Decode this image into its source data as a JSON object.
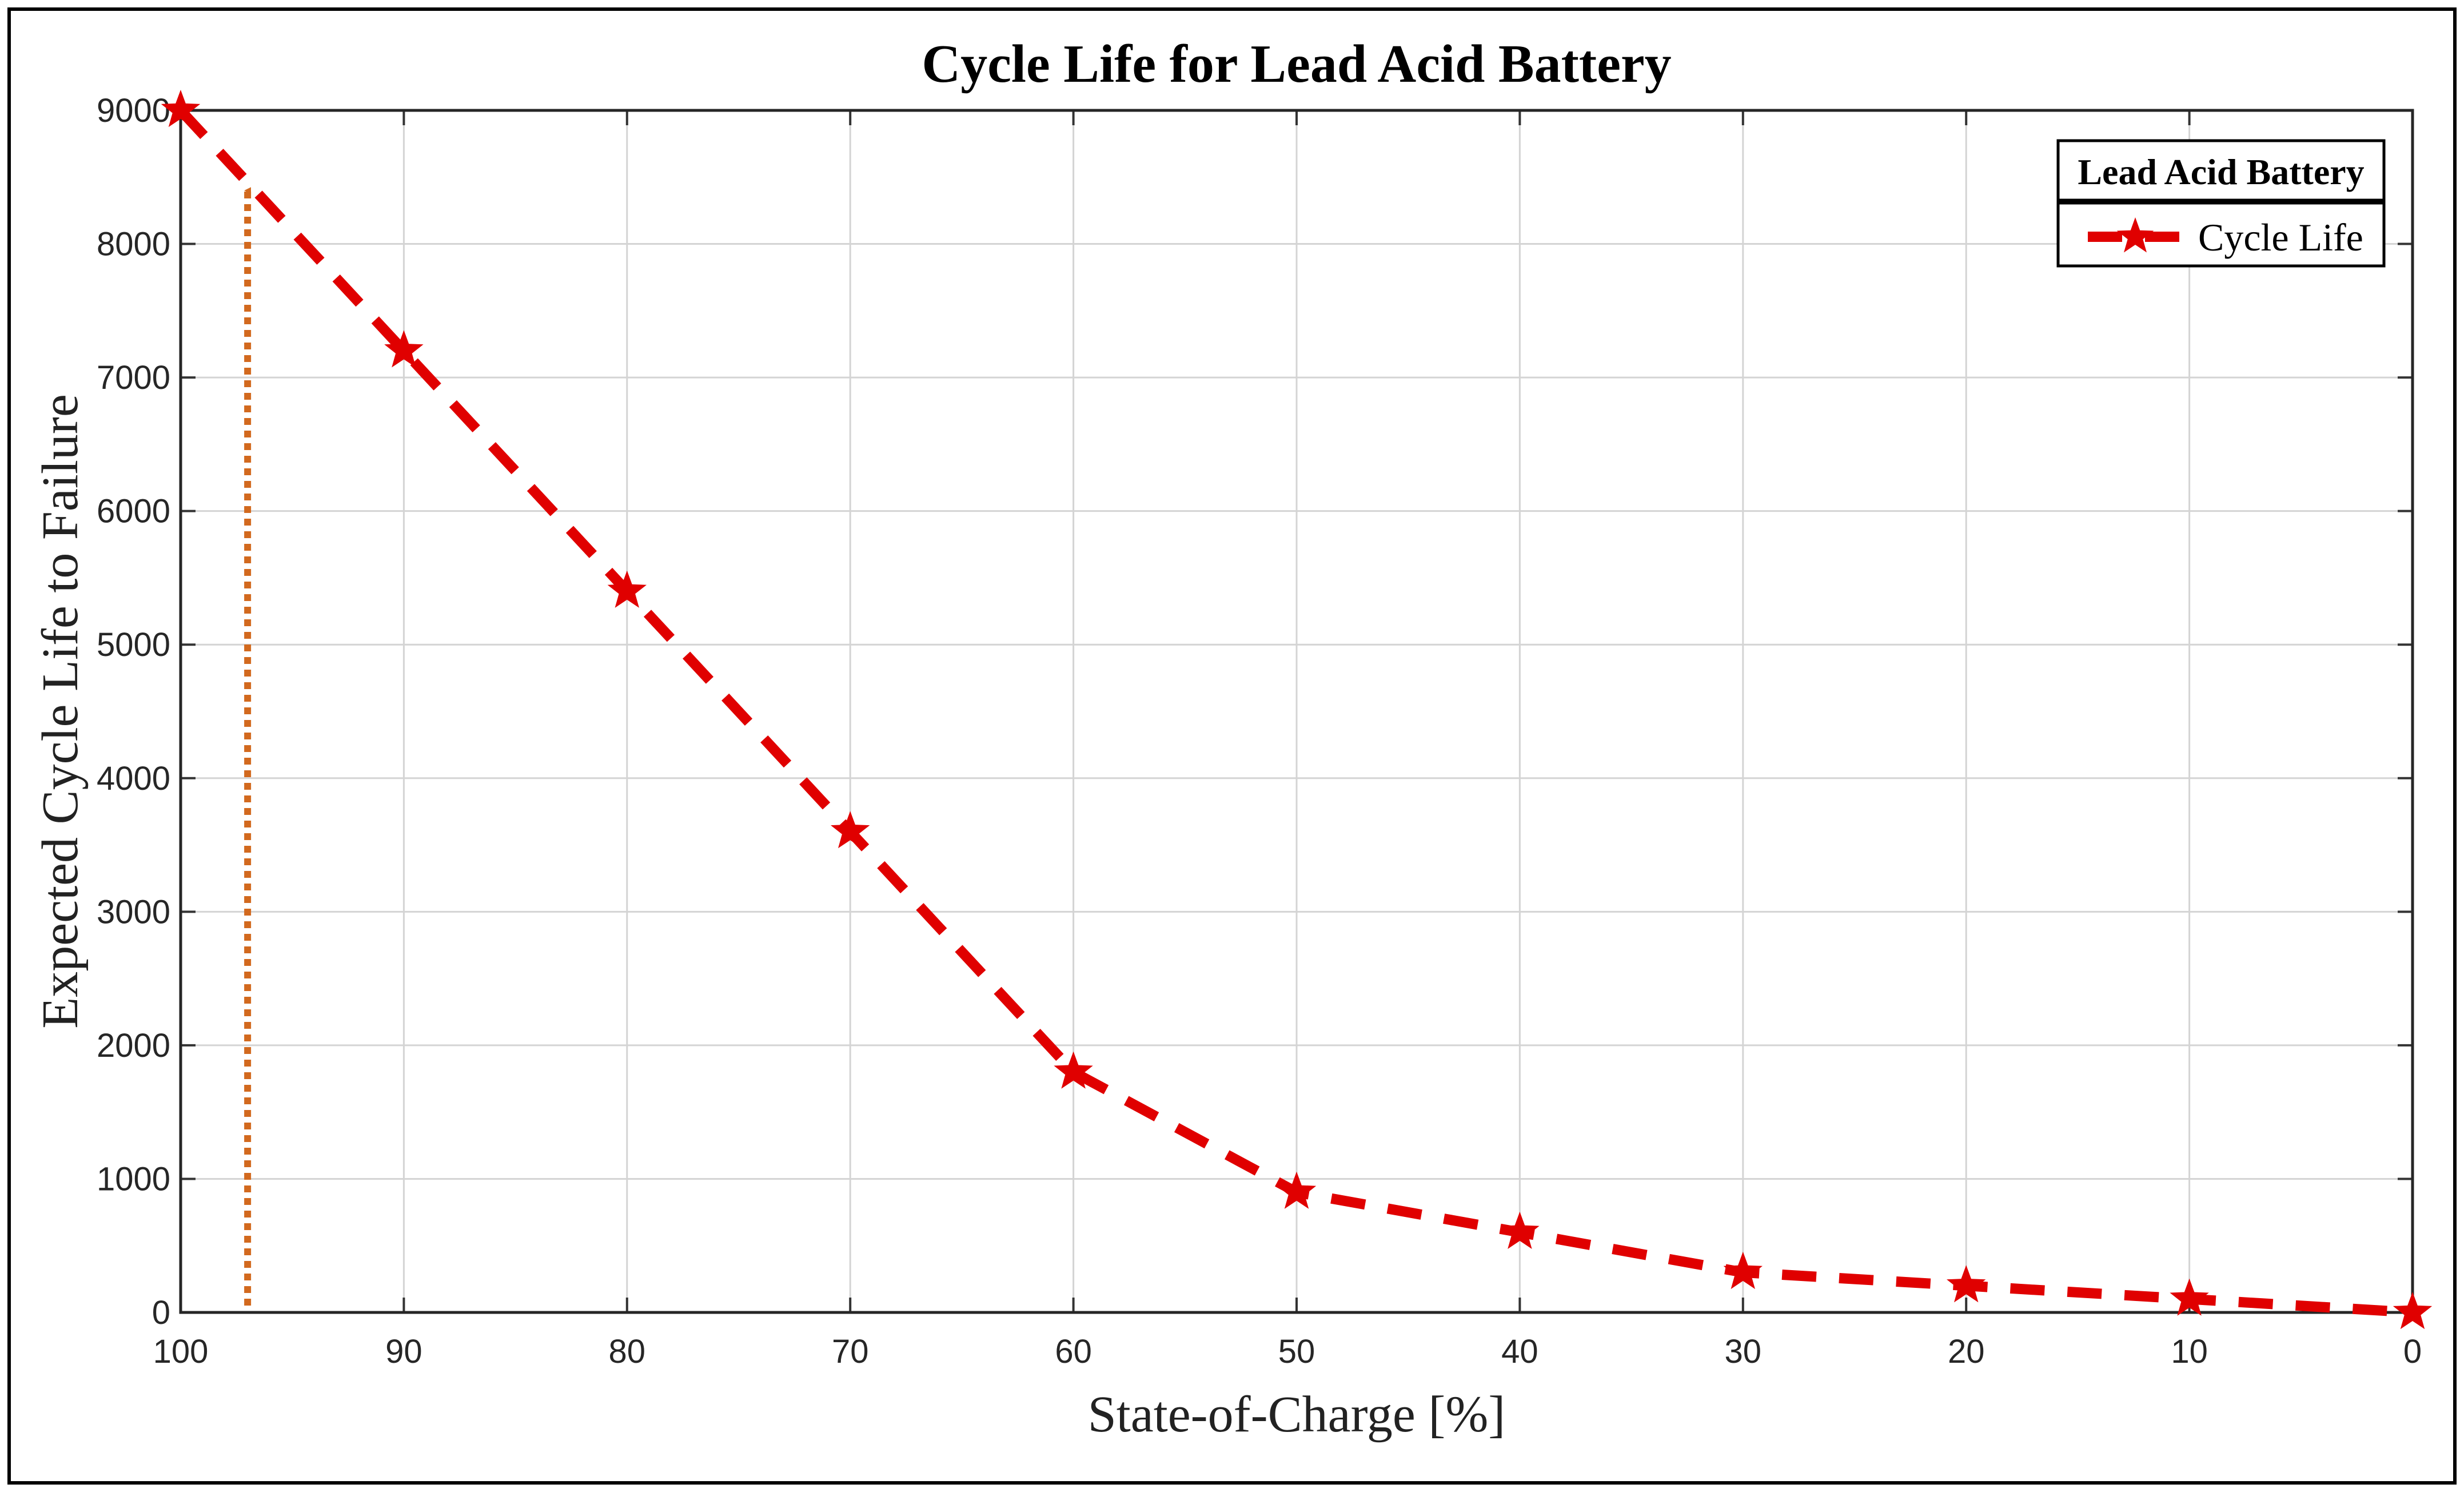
{
  "chart_data": {
    "type": "line",
    "title": "Cycle Life for Lead Acid Battery",
    "xlabel": "State-of-Charge [%]",
    "ylabel": "Expected Cycle Life to Failure",
    "xlim": [
      100,
      0
    ],
    "ylim": [
      0,
      9000
    ],
    "x_ticks": [
      "100",
      "90",
      "80",
      "70",
      "60",
      "50",
      "40",
      "30",
      "20",
      "10",
      "0"
    ],
    "y_ticks": [
      "0",
      "1000",
      "2000",
      "3000",
      "4000",
      "5000",
      "6000",
      "7000",
      "8000",
      "9000"
    ],
    "grid": true,
    "legend": {
      "title": "Lead Acid Battery",
      "placement": "top-right",
      "entries": [
        "Cycle Life"
      ]
    },
    "series": [
      {
        "name": "Cycle Life",
        "color": "#e00000",
        "line_style": "dashed",
        "marker": "star",
        "x": [
          100,
          90,
          80,
          70,
          60,
          50,
          40,
          30,
          20,
          10,
          0
        ],
        "y": [
          9000,
          7200,
          5400,
          3600,
          1800,
          900,
          600,
          300,
          200,
          100,
          0
        ]
      }
    ],
    "annotation": {
      "type": "dotted-arrow",
      "color": "#d2691e",
      "x": 97,
      "y_from": 0,
      "y_to": 8400
    }
  }
}
